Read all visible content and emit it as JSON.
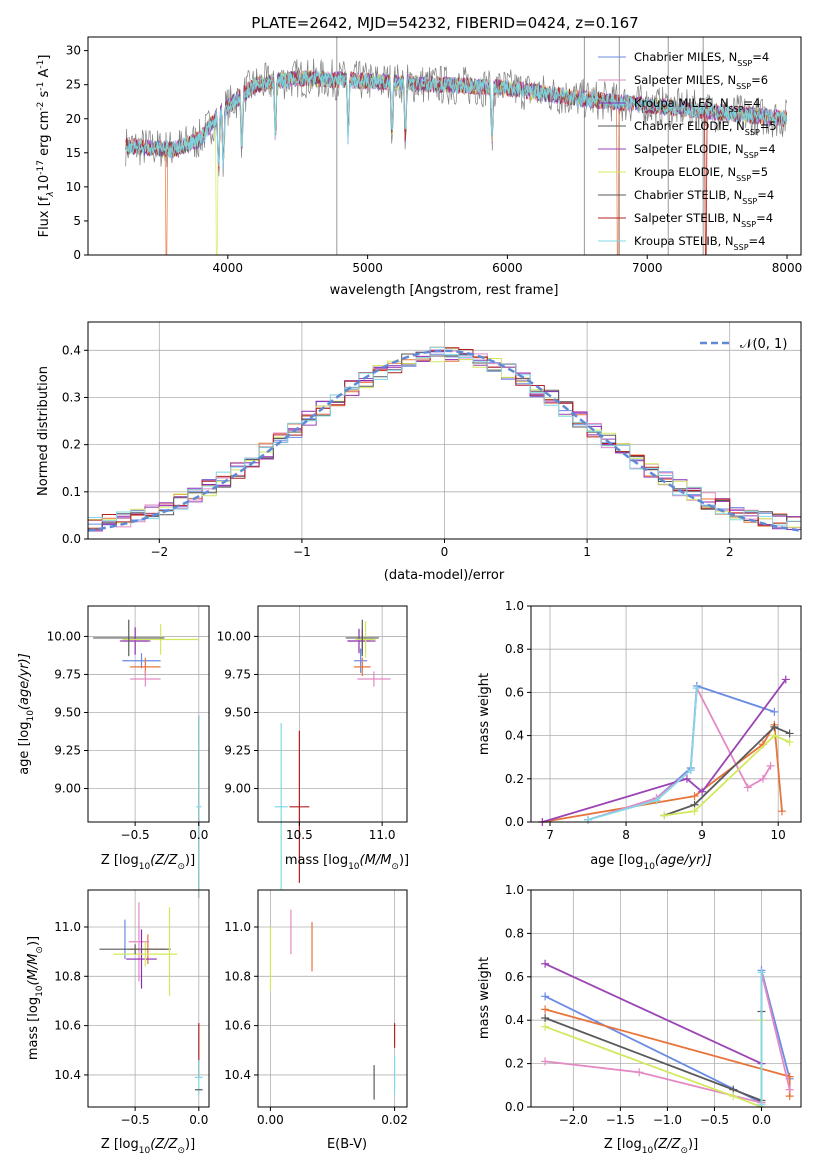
{
  "colors": {
    "cm": "#6a8be6",
    "sm": "#e8743b",
    "km": "#e38ac4",
    "ce": "#8e2bb0",
    "se": "#9b44b5",
    "ke": "#d4e85e",
    "cs": "#5a5a5a",
    "ss": "#b22020",
    "ks": "#82d8e6",
    "spectrum_overlay": "#7ad7e0",
    "data_grey": "#808080"
  },
  "panels": {
    "spectrum": {
      "title": "PLATE=2642, MJD=54232, FIBERID=0424, z=0.167",
      "xlabel": "wavelength [Angstrom, rest frame]",
      "ylabel": "Flux [f",
      "ylabel_tail": "10",
      "ylabel_exp": "-17",
      "ylabel_units": " erg cm",
      "ylabel_exp2": "-2",
      "ylabel_s": " s",
      "ylabel_exp3": "-1",
      "ylabel_A": " A",
      "ylabel_exp4": "-1",
      "ylabel_end": "]",
      "xticks": [
        "4000",
        "5000",
        "6000",
        "7000",
        "8000"
      ],
      "yticks": [
        "0",
        "5",
        "10",
        "15",
        "20",
        "25",
        "30"
      ],
      "legend": [
        {
          "key": "cm",
          "text": "Chabrier MILES, N",
          "sub": "SSP",
          "val": "=4"
        },
        {
          "key": "km",
          "text": "Salpeter MILES, N",
          "sub": "SSP",
          "val": "=6"
        },
        {
          "key": "ce",
          "text": "Kroupa MILES, N",
          "sub": "SSP",
          "val": "=4"
        },
        {
          "key": "cs",
          "text": "Chabrier ELODIE, N",
          "sub": "SSP",
          "val": "=5"
        },
        {
          "key": "se",
          "text": "Salpeter ELODIE, N",
          "sub": "SSP",
          "val": "=4"
        },
        {
          "key": "ke",
          "text": "Kroupa ELODIE, N",
          "sub": "SSP",
          "val": "=5"
        },
        {
          "key": "cs",
          "text": "Chabrier STELIB, N",
          "sub": "SSP",
          "val": "=4"
        },
        {
          "key": "ss",
          "text": "Salpeter STELIB, N",
          "sub": "SSP",
          "val": "=4"
        },
        {
          "key": "ks",
          "text": "Kroupa STELIB, N",
          "sub": "SSP",
          "val": "=4"
        }
      ]
    },
    "residuals": {
      "xlabel": "(data-model)/error",
      "ylabel": "Normed distribution",
      "xticks": [
        "−2",
        "−1",
        "0",
        "1",
        "2"
      ],
      "yticks": [
        "0.0",
        "0.1",
        "0.2",
        "0.3",
        "0.4"
      ],
      "legend_text": "𝒩(0, 1)"
    },
    "age_z": {
      "xlabel": "Z [log",
      "xlabel_sub": "10",
      "xlabel_rest": "(Z/Z",
      "xlabel_odot": "⊙",
      "xlabel_end": ")]",
      "ylabel": "age  [log",
      "ylabel_sub": "10",
      "ylabel_rest": "(age/yr)]",
      "xticks": [
        "−0.5",
        "0.0"
      ],
      "yticks": [
        "9.00",
        "9.25",
        "9.50",
        "9.75",
        "10.00"
      ]
    },
    "age_mass": {
      "xlabel": "mass [log",
      "xlabel_sub": "10",
      "xlabel_rest": "(M/M",
      "xlabel_odot": "⊙",
      "xlabel_end": ")]",
      "xticks": [
        "10.5",
        "11.0"
      ],
      "yticks": [
        "9.00",
        "9.25",
        "9.50",
        "9.75",
        "10.00"
      ]
    },
    "weight_age": {
      "xlabel": "age  [log",
      "xlabel_sub": "10",
      "xlabel_rest": "(age/yr)]",
      "ylabel": "mass weight",
      "xticks": [
        "7",
        "8",
        "9",
        "10"
      ],
      "yticks": [
        "0.0",
        "0.2",
        "0.4",
        "0.6",
        "0.8",
        "1.0"
      ]
    },
    "mass_z": {
      "xlabel": "Z [log",
      "xlabel_sub": "10",
      "xlabel_rest": "(Z/Z",
      "xlabel_odot": "⊙",
      "xlabel_end": ")]",
      "ylabel": "mass [log",
      "ylabel_sub": "10",
      "ylabel_rest": "(M/M",
      "ylabel_odot": "⊙",
      "ylabel_end": ")]",
      "xticks": [
        "−0.5",
        "0.0"
      ],
      "yticks": [
        "10.4",
        "10.6",
        "10.8",
        "11.0"
      ]
    },
    "mass_ebv": {
      "xlabel": "E(B-V)",
      "xticks": [
        "0.00",
        "0.02"
      ],
      "yticks": [
        "10.4",
        "10.6",
        "10.8",
        "11.0"
      ]
    },
    "weight_z": {
      "xlabel": "Z [log",
      "xlabel_sub": "10",
      "xlabel_rest": "(Z/Z",
      "xlabel_odot": "⊙",
      "xlabel_end": ")]",
      "ylabel": "mass weight",
      "xticks": [
        "−2.0",
        "−1.5",
        "−1.0",
        "−0.5",
        "0.0"
      ],
      "yticks": [
        "0.0",
        "0.2",
        "0.4",
        "0.6",
        "0.8",
        "1.0"
      ]
    }
  },
  "chart_data": [
    {
      "type": "line",
      "title": "PLATE=2642, MJD=54232, FIBERID=0424, z=0.167",
      "xlabel": "wavelength [Angstrom, rest frame]",
      "ylabel": "Flux [fλ10^-17 erg cm^-2 s^-1 A^-1]",
      "xlim": [
        3000,
        8100
      ],
      "ylim": [
        0,
        32
      ],
      "x_start": 3270,
      "x_end": 8000,
      "continuum": [
        [
          3270,
          16
        ],
        [
          3600,
          15.5
        ],
        [
          3800,
          17
        ],
        [
          3950,
          21
        ],
        [
          4200,
          25
        ],
        [
          4500,
          26
        ],
        [
          5000,
          25.5
        ],
        [
          5500,
          25
        ],
        [
          6000,
          24.5
        ],
        [
          6500,
          23
        ],
        [
          7000,
          22
        ],
        [
          7500,
          21
        ],
        [
          8000,
          20
        ]
      ],
      "absorption_lines": [
        3934,
        3968,
        4101,
        4340,
        4861,
        5175,
        5270,
        5890
      ],
      "series_drops": [
        {
          "key": "sm",
          "at": 3560
        },
        {
          "key": "ke",
          "at": 3920
        },
        {
          "key": "sm",
          "at": 6790
        },
        {
          "key": "sm",
          "at": 7420
        },
        {
          "key": "ss",
          "at": 7420
        }
      ],
      "grey_spikes": [
        4780,
        6550,
        6800,
        7150,
        7400
      ],
      "legend": [
        "Chabrier MILES, NSSP=4",
        "Salpeter MILES, NSSP=6",
        "Kroupa MILES, NSSP=4",
        "Chabrier ELODIE, NSSP=5",
        "Salpeter ELODIE, NSSP=4",
        "Kroupa ELODIE, NSSP=5",
        "Chabrier STELIB, NSSP=4",
        "Salpeter STELIB, NSSP=4",
        "Kroupa STELIB, NSSP=4"
      ]
    },
    {
      "type": "bar",
      "xlabel": "(data-model)/error",
      "ylabel": "Normed distribution",
      "xlim": [
        -2.5,
        2.5
      ],
      "ylim": [
        0,
        0.46
      ],
      "bin_width": 0.1,
      "reference": {
        "name": "𝒩(0, 1)",
        "mean": 0,
        "sigma": 1
      },
      "n_histograms": 9
    },
    {
      "type": "scatter",
      "xlabel": "Z [log10(Z/Z⊙)]",
      "ylabel": "age [log10(age/yr)]",
      "xlim": [
        -0.87,
        0.08
      ],
      "ylim": [
        8.78,
        10.2
      ],
      "points": [
        {
          "key": "cm",
          "x": -0.45,
          "y": 9.84,
          "xerr": 0.15,
          "yerr": 0.05
        },
        {
          "key": "sm",
          "x": -0.42,
          "y": 9.8,
          "xerr": 0.12,
          "yerr": 0.06
        },
        {
          "key": "km",
          "x": -0.42,
          "y": 9.72,
          "xerr": 0.12,
          "yerr": 0.05
        },
        {
          "key": "ce",
          "x": -0.5,
          "y": 9.97,
          "xerr": 0.1,
          "yerr": 0.09
        },
        {
          "key": "se",
          "x": -0.5,
          "y": 9.97,
          "xerr": 0.12,
          "yerr": 0.08
        },
        {
          "key": "ke",
          "x": -0.3,
          "y": 9.98,
          "xerr": 0.3,
          "yerr": 0.1
        },
        {
          "key": "cs",
          "x": -0.55,
          "y": 9.99,
          "xerr": 0.28,
          "yerr": 0.12
        },
        {
          "key": "ss",
          "x": 0.0,
          "y": 8.88,
          "xerr": 0.0,
          "yerr": 0.6
        },
        {
          "key": "ks",
          "x": 0.0,
          "y": 8.88,
          "xerr": 0.02,
          "yerr": 0.6
        }
      ]
    },
    {
      "type": "scatter",
      "xlabel": "mass [log10(M/M⊙)]",
      "ylabel": "age [log10(age/yr)]",
      "xlim": [
        10.25,
        11.15
      ],
      "ylim": [
        8.78,
        10.2
      ],
      "points": [
        {
          "key": "cm",
          "x": 10.87,
          "y": 9.84,
          "xerr": 0.04,
          "yerr": 0.08
        },
        {
          "key": "sm",
          "x": 10.88,
          "y": 9.8,
          "xerr": 0.05,
          "yerr": 0.06
        },
        {
          "key": "km",
          "x": 10.95,
          "y": 9.72,
          "xerr": 0.1,
          "yerr": 0.05
        },
        {
          "key": "ce",
          "x": 10.86,
          "y": 9.97,
          "xerr": 0.07,
          "yerr": 0.08
        },
        {
          "key": "se",
          "x": 10.88,
          "y": 9.97,
          "xerr": 0.08,
          "yerr": 0.08
        },
        {
          "key": "ke",
          "x": 10.9,
          "y": 9.98,
          "xerr": 0.06,
          "yerr": 0.12
        },
        {
          "key": "cs",
          "x": 10.88,
          "y": 9.99,
          "xerr": 0.1,
          "yerr": 0.12
        },
        {
          "key": "ss",
          "x": 10.5,
          "y": 8.88,
          "xerr": 0.06,
          "yerr": 0.5
        },
        {
          "key": "ks",
          "x": 10.39,
          "y": 8.88,
          "xerr": 0.04,
          "yerr": 0.55
        }
      ]
    },
    {
      "type": "line",
      "xlabel": "age [log10(age/yr)]",
      "ylabel": "mass weight",
      "xlim": [
        6.75,
        10.3
      ],
      "ylim": [
        0,
        1
      ],
      "series": [
        {
          "key": "cm",
          "x": [
            7.5,
            8.4,
            8.85,
            8.93,
            9.95
          ],
          "y": [
            0.01,
            0.11,
            0.25,
            0.63,
            0.51
          ]
        },
        {
          "key": "sm",
          "x": [
            6.9,
            8.9,
            9.8,
            9.95,
            10.05
          ],
          "y": [
            0.0,
            0.12,
            0.36,
            0.45,
            0.05
          ]
        },
        {
          "key": "km",
          "x": [
            7.5,
            8.4,
            8.85,
            8.93,
            9.6,
            9.8,
            9.9
          ],
          "y": [
            0.01,
            0.11,
            0.24,
            0.62,
            0.16,
            0.2,
            0.26
          ]
        },
        {
          "key": "se",
          "x": [
            6.9,
            8.8,
            9.0,
            10.1
          ],
          "y": [
            0.0,
            0.2,
            0.14,
            0.66
          ]
        },
        {
          "key": "cs",
          "x": [
            8.5,
            8.9,
            9.95,
            10.15
          ],
          "y": [
            0.03,
            0.08,
            0.44,
            0.41
          ]
        },
        {
          "key": "ke",
          "x": [
            8.5,
            8.9,
            9.95,
            10.15
          ],
          "y": [
            0.03,
            0.05,
            0.4,
            0.37
          ]
        },
        {
          "key": "ks",
          "x": [
            7.5,
            8.4,
            8.85,
            8.93
          ],
          "y": [
            0.01,
            0.1,
            0.24,
            0.62
          ]
        }
      ]
    },
    {
      "type": "scatter",
      "xlabel": "Z [log10(Z/Z⊙)]",
      "ylabel": "mass [log10(M/M⊙)]",
      "xlim": [
        -0.87,
        0.08
      ],
      "ylim": [
        10.27,
        11.15
      ],
      "points": [
        {
          "key": "cm",
          "x": -0.58,
          "y": 10.95,
          "xerr": 0.0,
          "yerr": 0.08
        },
        {
          "key": "sm",
          "x": -0.4,
          "y": 10.91,
          "xerr": 0.15,
          "yerr": 0.06
        },
        {
          "key": "km",
          "x": -0.47,
          "y": 10.94,
          "xerr": 0.08,
          "yerr": 0.16
        },
        {
          "key": "ce",
          "x": -0.45,
          "y": 10.87,
          "xerr": 0.12,
          "yerr": 0.12
        },
        {
          "key": "ke",
          "x": -0.42,
          "y": 10.89,
          "xerr": 0.25,
          "yerr": 0.05
        },
        {
          "key": "cs",
          "x": -0.5,
          "y": 10.91,
          "xerr": 0.28,
          "yerr": 0.02
        },
        {
          "key": "ke",
          "x": -0.23,
          "y": 10.9,
          "xerr": 0.0,
          "yerr": 0.18
        },
        {
          "key": "ss",
          "x": 0.0,
          "y": 10.5,
          "xerr": 0.0,
          "yerr": 0.11
        },
        {
          "key": "ks",
          "x": 0.0,
          "y": 10.39,
          "xerr": 0.03,
          "yerr": 0.07
        },
        {
          "key": "cs",
          "x": 0.0,
          "y": 10.34,
          "xerr": 0.03,
          "yerr": 0.0
        }
      ]
    },
    {
      "type": "scatter",
      "xlabel": "E(B-V)",
      "ylabel": "mass [log10(M/M⊙)]",
      "xlim": [
        -0.002,
        0.022
      ],
      "ylim": [
        10.27,
        11.15
      ],
      "points": [
        {
          "key": "ke",
          "x": 0.0,
          "y": 10.87,
          "yerr": 0.13
        },
        {
          "key": "km",
          "x": 0.0033,
          "y": 10.98,
          "yerr": 0.09
        },
        {
          "key": "sm",
          "x": 0.0067,
          "y": 10.92,
          "yerr": 0.1
        },
        {
          "key": "ss",
          "x": 0.02,
          "y": 10.56,
          "yerr": 0.05
        },
        {
          "key": "ks",
          "x": 0.02,
          "y": 10.4,
          "yerr": 0.08
        },
        {
          "key": "cs",
          "x": 0.0167,
          "y": 10.37,
          "yerr": 0.07
        }
      ]
    },
    {
      "type": "line",
      "xlabel": "Z [log10(Z/Z⊙)]",
      "ylabel": "mass weight",
      "xlim": [
        -2.45,
        0.42
      ],
      "ylim": [
        0,
        1
      ],
      "series": [
        {
          "key": "cm",
          "x": [
            -2.3,
            0.0,
            0.0,
            0.3
          ],
          "y": [
            0.51,
            0.02,
            0.63,
            0.13
          ]
        },
        {
          "key": "sm",
          "x": [
            -2.3,
            0.3,
            0.3
          ],
          "y": [
            0.45,
            0.14,
            0.05
          ]
        },
        {
          "key": "km",
          "x": [
            -2.3,
            -1.3,
            0.0,
            0.0,
            0.3
          ],
          "y": [
            0.21,
            0.16,
            0.02,
            0.62,
            0.08
          ]
        },
        {
          "key": "se",
          "x": [
            -2.3,
            0.0
          ],
          "y": [
            0.66,
            0.2
          ]
        },
        {
          "key": "cs",
          "x": [
            -2.3,
            -0.3,
            0.0,
            0.0
          ],
          "y": [
            0.41,
            0.08,
            0.03,
            0.44
          ]
        },
        {
          "key": "ke",
          "x": [
            -2.3,
            -0.3,
            0.0,
            0.0
          ],
          "y": [
            0.37,
            0.05,
            0.0,
            0.4
          ]
        },
        {
          "key": "ks",
          "x": [
            0.0,
            0.0
          ],
          "y": [
            0.01,
            0.62
          ]
        }
      ]
    }
  ]
}
